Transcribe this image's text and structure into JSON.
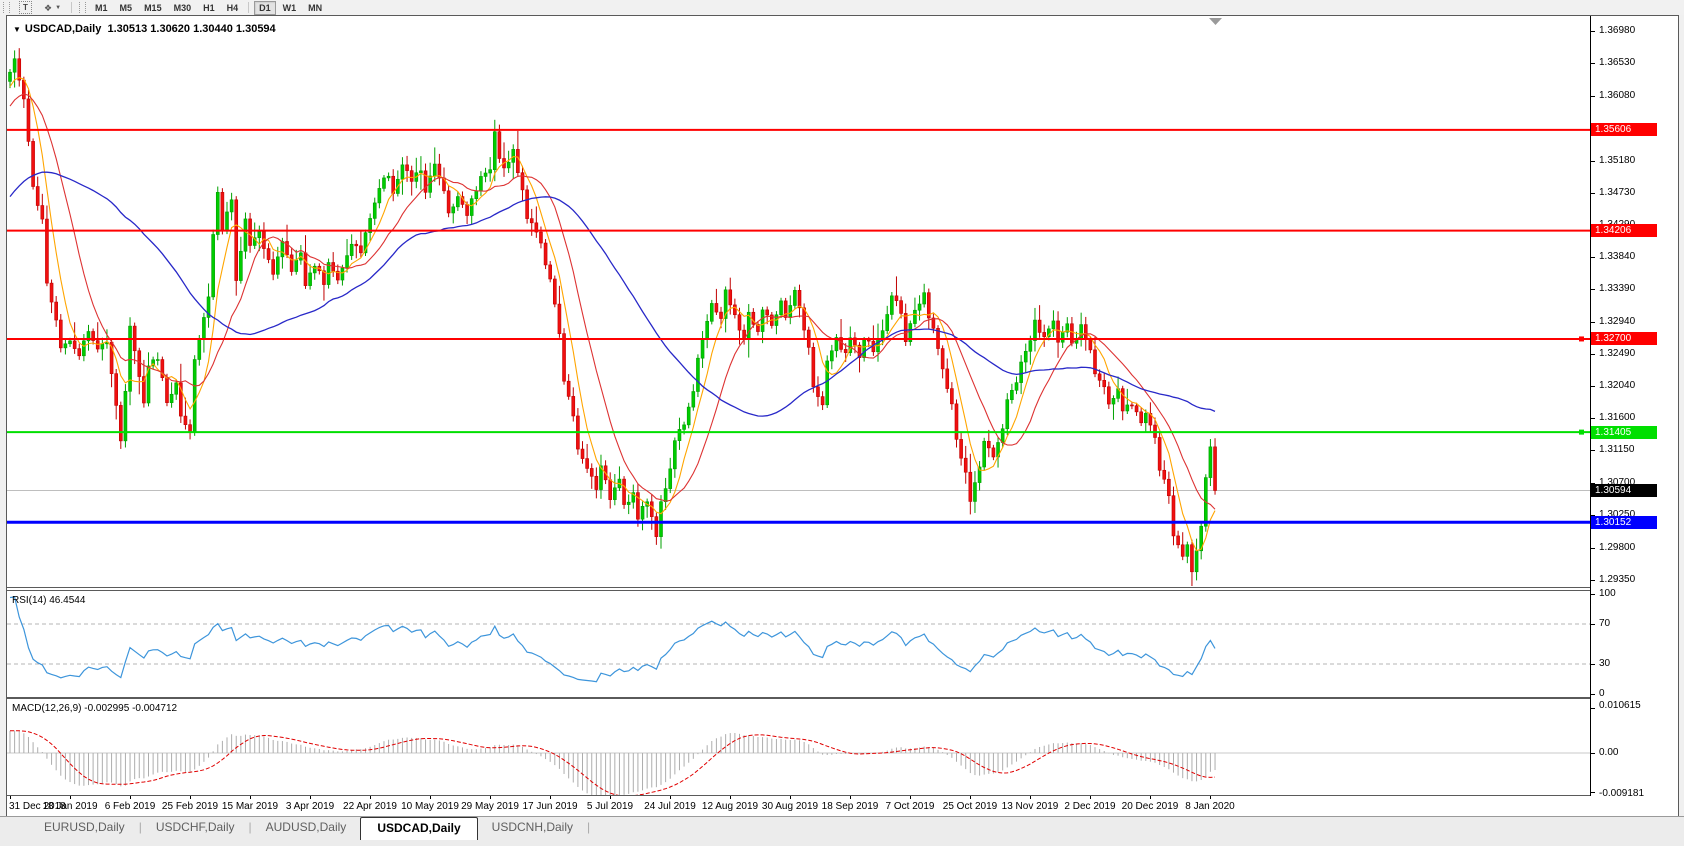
{
  "toolbar": {
    "text_tool_glyph": "T",
    "arrows_glyph": "❖",
    "caret_glyph": "▼",
    "timeframes": [
      "M1",
      "M5",
      "M15",
      "M30",
      "H1",
      "H4",
      "D1",
      "W1",
      "MN"
    ],
    "active_timeframe": "D1"
  },
  "chart": {
    "title_caret": "▼",
    "symbol_title": "USDCAD,Daily",
    "ohlc_display": "1.30513 1.30620 1.30440 1.30594",
    "price_axis_ticks": [
      "1.36980",
      "1.36530",
      "1.36080",
      "1.35630",
      "1.35180",
      "1.34730",
      "1.34290",
      "1.33840",
      "1.33390",
      "1.32940",
      "1.32490",
      "1.32040",
      "1.31600",
      "1.31150",
      "1.30700",
      "1.30250",
      "1.29800",
      "1.29350"
    ],
    "hlines": [
      {
        "value": 1.35606,
        "label": "1.35606",
        "color": "#FF0000",
        "text_color": "#FFFFFF",
        "width": 2,
        "handle": false
      },
      {
        "value": 1.34206,
        "label": "1.34206",
        "color": "#FF0000",
        "text_color": "#FFFFFF",
        "width": 2,
        "handle": false
      },
      {
        "value": 1.327,
        "label": "1.32700",
        "color": "#FF0000",
        "text_color": "#FFFFFF",
        "width": 2,
        "handle": true
      },
      {
        "value": 1.31405,
        "label": "1.31405",
        "color": "#00DF00",
        "text_color": "#FFFFFF",
        "width": 2,
        "handle": true
      },
      {
        "value": 1.30152,
        "label": "1.30152",
        "color": "#0000FF",
        "text_color": "#FFFFFF",
        "width": 3,
        "handle": false
      }
    ],
    "current_price": {
      "value": 1.30594,
      "label": "1.30594",
      "line_color": "#BEBEBE",
      "chip_bg": "#000000",
      "text_color": "#FFFFFF"
    },
    "shift_marker_color": "#9a9a9a",
    "date_labels": [
      "31 Dec 2018",
      "18 Jan 2019",
      "6 Feb 2019",
      "25 Feb 2019",
      "15 Mar 2019",
      "3 Apr 2019",
      "22 Apr 2019",
      "10 May 2019",
      "29 May 2019",
      "17 Jun 2019",
      "5 Jul 2019",
      "24 Jul 2019",
      "12 Aug 2019",
      "30 Aug 2019",
      "18 Sep 2019",
      "7 Oct 2019",
      "25 Oct 2019",
      "13 Nov 2019",
      "2 Dec 2019",
      "20 Dec 2019",
      "8 Jan 2020"
    ]
  },
  "rsi_panel": {
    "label": "RSI(14) 46.4544",
    "line_color": "#3D95DB",
    "level_color": "#B4B4B4",
    "levels": [
      {
        "v": 100,
        "label": "100",
        "dashed": false
      },
      {
        "v": 70,
        "label": "70",
        "dashed": true
      },
      {
        "v": 30,
        "label": "30",
        "dashed": true
      },
      {
        "v": 0,
        "label": "0",
        "dashed": false
      }
    ]
  },
  "macd_panel": {
    "label": "MACD(12,26,9) -0.002995 -0.004712",
    "hist_color": "#ADADAD",
    "signal_color": "#E00000",
    "zero_color": "#C8C8C8",
    "axis": [
      {
        "v": 0.010615,
        "label": "0.010615"
      },
      {
        "v": 0.0,
        "label": "0.00"
      },
      {
        "v": -0.009181,
        "label": "-0.009181"
      }
    ]
  },
  "tabs": [
    {
      "label": "EURUSD,Daily",
      "active": false
    },
    {
      "label": "USDCHF,Daily",
      "active": false
    },
    {
      "label": "AUDUSD,Daily",
      "active": false
    },
    {
      "label": "USDCAD,Daily",
      "active": true
    },
    {
      "label": "USDCNH,Daily",
      "active": false
    }
  ],
  "chart_data": {
    "type": "candlestick",
    "symbol": "USDCAD",
    "timeframe": "Daily",
    "current_ohlc": {
      "open": 1.30513,
      "high": 1.3062,
      "low": 1.3044,
      "close": 1.30594
    },
    "visible_candles": 262,
    "preroll_candles": 45,
    "seed": 1337,
    "noise": 0.001,
    "candle_up_fill": "#00CC00",
    "candle_up_stroke": "#00A000",
    "candle_down_fill": "#F01010",
    "candle_down_stroke": "#C00000",
    "moving_averages": [
      {
        "period": 6,
        "color": "#FFA500"
      },
      {
        "period": 14,
        "color": "#DD3333"
      },
      {
        "period": 45,
        "color": "#2828C8"
      }
    ],
    "rsi": {
      "period": 14,
      "current": 46.4544
    },
    "macd": {
      "fast": 12,
      "slow": 26,
      "signal": 9,
      "current_macd": -0.002995,
      "current_signal": -0.004712
    },
    "price_range_top": 1.3698,
    "price_range_bottom": 1.2935,
    "close_anchors": [
      [
        -45,
        1.33
      ],
      [
        -30,
        1.3395
      ],
      [
        -20,
        1.348
      ],
      [
        -8,
        1.359
      ],
      [
        -1,
        1.363
      ],
      [
        0,
        1.364
      ],
      [
        1,
        1.366
      ],
      [
        3,
        1.36
      ],
      [
        5,
        1.348
      ],
      [
        7,
        1.344
      ],
      [
        8,
        1.335
      ],
      [
        10,
        1.33
      ],
      [
        11,
        1.326
      ],
      [
        13,
        1.327
      ],
      [
        15,
        1.325
      ],
      [
        17,
        1.328
      ],
      [
        19,
        1.3255
      ],
      [
        21,
        1.327
      ],
      [
        23,
        1.318
      ],
      [
        24,
        1.3125
      ],
      [
        25,
        1.32
      ],
      [
        26,
        1.329
      ],
      [
        29,
        1.318
      ],
      [
        30,
        1.323
      ],
      [
        32,
        1.3245
      ],
      [
        34,
        1.318
      ],
      [
        36,
        1.321
      ],
      [
        37,
        1.316
      ],
      [
        39,
        1.3135
      ],
      [
        40,
        1.324
      ],
      [
        43,
        1.333
      ],
      [
        44,
        1.342
      ],
      [
        45,
        1.3475
      ],
      [
        46,
        1.342
      ],
      [
        48,
        1.3465
      ],
      [
        49,
        1.335
      ],
      [
        51,
        1.344
      ],
      [
        52,
        1.34
      ],
      [
        54,
        1.3415
      ],
      [
        56,
        1.3385
      ],
      [
        57,
        1.336
      ],
      [
        59,
        1.3405
      ],
      [
        61,
        1.3365
      ],
      [
        63,
        1.339
      ],
      [
        64,
        1.3345
      ],
      [
        66,
        1.3375
      ],
      [
        68,
        1.335
      ],
      [
        69,
        1.338
      ],
      [
        71,
        1.335
      ],
      [
        73,
        1.3385
      ],
      [
        74,
        1.3405
      ],
      [
        76,
        1.339
      ],
      [
        78,
        1.344
      ],
      [
        80,
        1.348
      ],
      [
        82,
        1.35
      ],
      [
        83,
        1.3475
      ],
      [
        85,
        1.351
      ],
      [
        87,
        1.349
      ],
      [
        89,
        1.3505
      ],
      [
        90,
        1.3475
      ],
      [
        92,
        1.351
      ],
      [
        94,
        1.348
      ],
      [
        95,
        1.3445
      ],
      [
        97,
        1.347
      ],
      [
        99,
        1.344
      ],
      [
        100,
        1.3465
      ],
      [
        102,
        1.3495
      ],
      [
        104,
        1.351
      ],
      [
        105,
        1.3555
      ],
      [
        106,
        1.3525
      ],
      [
        107,
        1.3505
      ],
      [
        109,
        1.353
      ],
      [
        111,
        1.348
      ],
      [
        112,
        1.344
      ],
      [
        114,
        1.342
      ],
      [
        115,
        1.34
      ],
      [
        117,
        1.335
      ],
      [
        119,
        1.328
      ],
      [
        120,
        1.3215
      ],
      [
        122,
        1.316
      ],
      [
        123,
        1.3115
      ],
      [
        125,
        1.309
      ],
      [
        127,
        1.3065
      ],
      [
        128,
        1.309
      ],
      [
        130,
        1.305
      ],
      [
        132,
        1.308
      ],
      [
        133,
        1.304
      ],
      [
        135,
        1.3055
      ],
      [
        136,
        1.302
      ],
      [
        138,
        1.3045
      ],
      [
        140,
        1.3
      ],
      [
        141,
        1.304
      ],
      [
        143,
        1.309
      ],
      [
        144,
        1.313
      ],
      [
        146,
        1.3155
      ],
      [
        148,
        1.32
      ],
      [
        149,
        1.3245
      ],
      [
        151,
        1.329
      ],
      [
        152,
        1.332
      ],
      [
        154,
        1.33
      ],
      [
        155,
        1.3335
      ],
      [
        157,
        1.33
      ],
      [
        159,
        1.327
      ],
      [
        160,
        1.3305
      ],
      [
        162,
        1.328
      ],
      [
        163,
        1.331
      ],
      [
        165,
        1.329
      ],
      [
        167,
        1.332
      ],
      [
        168,
        1.3295
      ],
      [
        170,
        1.3335
      ],
      [
        171,
        1.331
      ],
      [
        173,
        1.326
      ],
      [
        174,
        1.32
      ],
      [
        176,
        1.318
      ],
      [
        177,
        1.3235
      ],
      [
        179,
        1.327
      ],
      [
        181,
        1.325
      ],
      [
        182,
        1.327
      ],
      [
        184,
        1.3245
      ],
      [
        185,
        1.327
      ],
      [
        187,
        1.3255
      ],
      [
        189,
        1.328
      ],
      [
        190,
        1.3305
      ],
      [
        191,
        1.333
      ],
      [
        193,
        1.331
      ],
      [
        194,
        1.327
      ],
      [
        196,
        1.3305
      ],
      [
        198,
        1.333
      ],
      [
        199,
        1.33
      ],
      [
        201,
        1.326
      ],
      [
        202,
        1.323
      ],
      [
        204,
        1.318
      ],
      [
        205,
        1.313
      ],
      [
        207,
        1.308
      ],
      [
        208,
        1.3045
      ],
      [
        210,
        1.309
      ],
      [
        211,
        1.313
      ],
      [
        213,
        1.311
      ],
      [
        215,
        1.315
      ],
      [
        216,
        1.3185
      ],
      [
        218,
        1.321
      ],
      [
        219,
        1.324
      ],
      [
        221,
        1.327
      ],
      [
        222,
        1.3295
      ],
      [
        224,
        1.327
      ],
      [
        226,
        1.3295
      ],
      [
        227,
        1.327
      ],
      [
        229,
        1.329
      ],
      [
        230,
        1.326
      ],
      [
        232,
        1.3285
      ],
      [
        234,
        1.3255
      ],
      [
        235,
        1.3225
      ],
      [
        237,
        1.32
      ],
      [
        238,
        1.318
      ],
      [
        240,
        1.32
      ],
      [
        241,
        1.317
      ],
      [
        243,
        1.318
      ],
      [
        245,
        1.3155
      ],
      [
        246,
        1.317
      ],
      [
        248,
        1.313
      ],
      [
        249,
        1.309
      ],
      [
        251,
        1.305
      ],
      [
        252,
        1.3
      ],
      [
        254,
        1.2965
      ],
      [
        255,
        1.2985
      ],
      [
        256,
        1.295
      ],
      [
        258,
        1.301
      ],
      [
        259,
        1.308
      ],
      [
        260,
        1.3117
      ],
      [
        261,
        1.30594
      ]
    ]
  }
}
